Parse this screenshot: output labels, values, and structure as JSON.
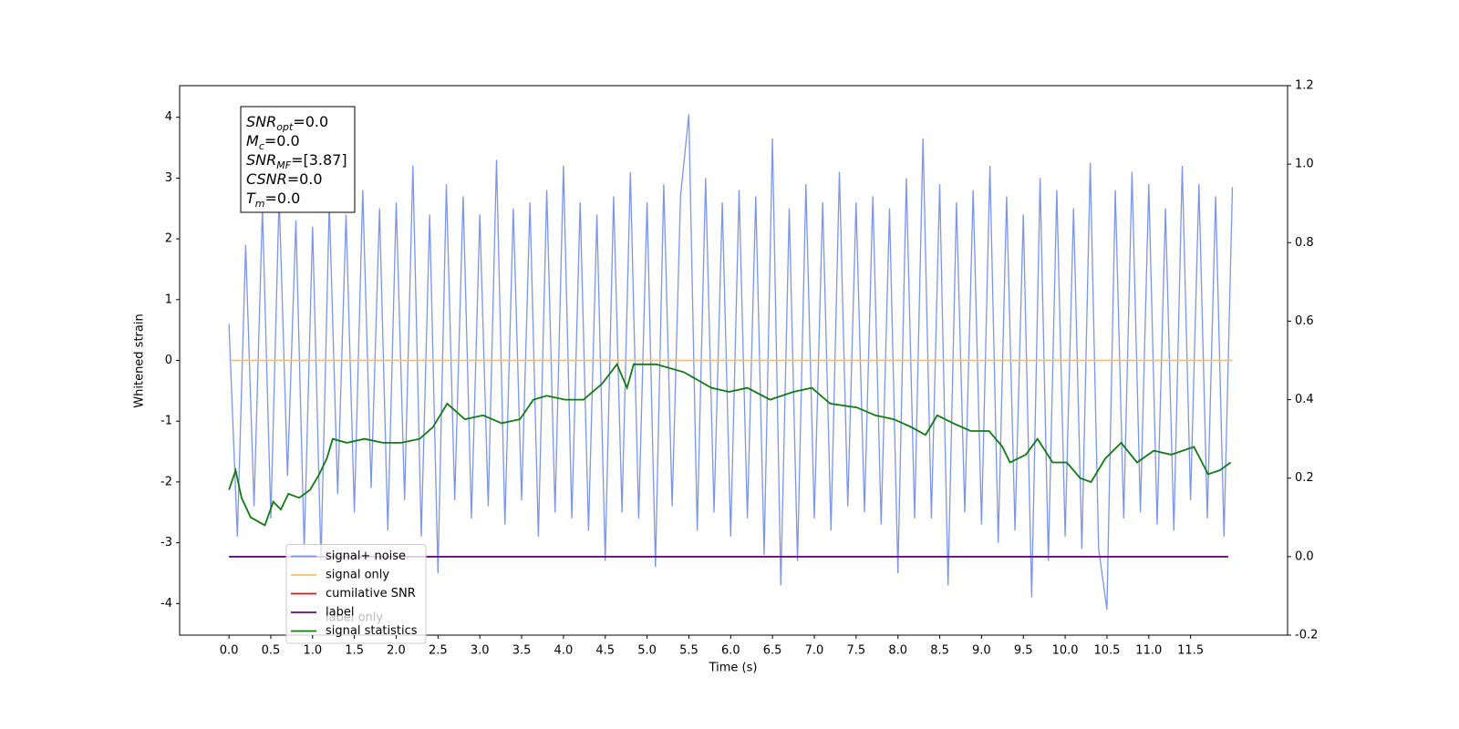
{
  "chart_data": {
    "type": "line",
    "xlabel": "Time (s)",
    "ylabel": "Whitened strain",
    "xlim": [
      -0.59,
      12.66
    ],
    "ylim": [
      -4.52,
      4.52
    ],
    "y2lim": [
      -0.2,
      1.2
    ],
    "xticks": [
      {
        "value": 0,
        "label": "0.0"
      },
      0.5,
      {
        "value": 1,
        "label": "1.0"
      },
      1.5,
      {
        "value": 2,
        "label": "2.0"
      },
      2.5,
      {
        "value": 3,
        "label": "3.0"
      },
      3.5,
      {
        "value": 4,
        "label": "4.0"
      },
      4.5,
      {
        "value": 5,
        "label": "5.0"
      },
      5.5,
      {
        "value": 6,
        "label": "6.0"
      },
      6.5,
      {
        "value": 7,
        "label": "7.0"
      },
      7.5,
      {
        "value": 8,
        "label": "8.0"
      },
      8.5,
      {
        "value": 9,
        "label": "9.0"
      },
      9.5,
      {
        "value": 10,
        "label": "10.0"
      },
      10.5,
      {
        "value": 11,
        "label": "11.0"
      },
      11.5
    ],
    "yticks": [
      -4,
      -3,
      -2,
      -1,
      0,
      1,
      2,
      3,
      4
    ],
    "y2ticks": [
      -0.2,
      {
        "value": 0,
        "label": "0.0"
      },
      0.2,
      0.4,
      0.6,
      0.8,
      {
        "value": 1,
        "label": "1.0"
      },
      1.2
    ],
    "legend_position": "lower left",
    "legend_overlay": "label only",
    "annotation": [
      {
        "main": "SNR",
        "sub": "opt",
        "rest": "=0.0"
      },
      {
        "main": "M",
        "sub": "c",
        "rest": "=0.0"
      },
      {
        "main": "SNR",
        "sub": "MF",
        "rest": "=[3.87]"
      },
      {
        "main": "CSNR",
        "sub": null,
        "rest": "=0.0"
      },
      {
        "main": "T",
        "sub": "m",
        "rest": "=0.0"
      }
    ],
    "series": [
      {
        "name": "signal+ noise",
        "color": "#7b95e8",
        "x": [
          0,
          0.1,
          0.2,
          0.3,
          0.4,
          0.5,
          0.6,
          0.7,
          0.8,
          0.9,
          1,
          1.1,
          1.2,
          1.3,
          1.4,
          1.5,
          1.6,
          1.7,
          1.8,
          1.9,
          2,
          2.1,
          2.2,
          2.3,
          2.4,
          2.5,
          2.6,
          2.7,
          2.8,
          2.9,
          3,
          3.1,
          3.2,
          3.3,
          3.4,
          3.5,
          3.6,
          3.7,
          3.8,
          3.9,
          4,
          4.1,
          4.2,
          4.3,
          4.4,
          4.5,
          4.6,
          4.7,
          4.8,
          4.9,
          5,
          5.1,
          5.2,
          5.3,
          5.4,
          5.5,
          5.6,
          5.7,
          5.8,
          5.9,
          6,
          6.1,
          6.2,
          6.3,
          6.4,
          6.5,
          6.6,
          6.7,
          6.8,
          6.9,
          7,
          7.1,
          7.2,
          7.3,
          7.4,
          7.5,
          7.6,
          7.7,
          7.8,
          7.9,
          8,
          8.1,
          8.2,
          8.3,
          8.4,
          8.5,
          8.6,
          8.7,
          8.8,
          8.9,
          9,
          9.1,
          9.2,
          9.3,
          9.4,
          9.5,
          9.6,
          9.7,
          9.8,
          9.9,
          10,
          10.1,
          10.2,
          10.3,
          10.4,
          10.5,
          10.6,
          10.7,
          10.8,
          10.9,
          11,
          11.1,
          11.2,
          11.3,
          11.4,
          11.5,
          11.6,
          11.7,
          11.8,
          11.9,
          12
        ],
        "values": [
          0.6,
          -2.9,
          1.9,
          -2.4,
          2.5,
          -2.6,
          2.7,
          -1.9,
          2.3,
          -3.1,
          2.2,
          -3.3,
          2.6,
          -2.2,
          2.4,
          -2.5,
          2.8,
          -2.1,
          2.5,
          -2.8,
          2.6,
          -2.3,
          3.2,
          -2.9,
          2.4,
          -3.5,
          2.9,
          -2.3,
          2.7,
          -2.6,
          2.4,
          -2.4,
          3.3,
          -2.7,
          2.5,
          -2.3,
          2.6,
          -2.9,
          2.8,
          -2.5,
          3.2,
          -2.6,
          2.6,
          -2.8,
          2.4,
          -3.3,
          2.7,
          -2.5,
          3.1,
          -2.6,
          2.6,
          -3.4,
          2.9,
          -2.4,
          2.7,
          4.05,
          -2.8,
          3.0,
          -2.5,
          2.6,
          -2.9,
          2.8,
          -2.6,
          2.7,
          -3.2,
          3.65,
          -3.7,
          2.5,
          -3.3,
          2.9,
          -2.6,
          2.6,
          -2.8,
          3.1,
          -2.4,
          2.6,
          -2.5,
          2.7,
          -2.7,
          2.5,
          -3.5,
          3.0,
          -2.6,
          3.65,
          -2.6,
          2.9,
          -3.7,
          2.6,
          -2.5,
          2.8,
          -2.7,
          3.2,
          -3.0,
          2.7,
          -2.8,
          2.4,
          -3.9,
          3.0,
          -3.3,
          2.8,
          -2.9,
          2.5,
          -3.1,
          3.25,
          -3.1,
          -4.1,
          2.8,
          -2.6,
          3.1,
          -2.5,
          2.9,
          -2.7,
          2.5,
          -2.8,
          3.2,
          -2.3,
          2.9,
          -2.6,
          2.7,
          -2.9,
          2.85
        ]
      },
      {
        "name": "signal only",
        "color": "#f5c26b",
        "x": [
          0,
          12
        ],
        "values": [
          0,
          0
        ]
      },
      {
        "name": "cumilative SNR",
        "color": "#e01010",
        "axis": "y2",
        "x": [
          0,
          11.95
        ],
        "values": [
          0,
          0
        ]
      },
      {
        "name": "label",
        "color": "#6a0a78",
        "axis": "y2",
        "x": [
          0,
          11.95
        ],
        "values": [
          0,
          0
        ]
      },
      {
        "name": "signal statistics",
        "color": "#117a11",
        "axis": "y2",
        "x": [
          0,
          0.08,
          0.15,
          0.26,
          0.43,
          0.53,
          0.62,
          0.71,
          0.84,
          0.97,
          1.08,
          1.17,
          1.24,
          1.41,
          1.62,
          1.84,
          2.06,
          2.28,
          2.44,
          2.61,
          2.82,
          3.04,
          3.26,
          3.48,
          3.64,
          3.8,
          4.02,
          4.24,
          4.46,
          4.64,
          4.76,
          4.84,
          5.11,
          5.44,
          5.77,
          5.98,
          6.2,
          6.47,
          6.75,
          6.97,
          7.19,
          7.51,
          7.73,
          7.95,
          8.16,
          8.33,
          8.47,
          8.66,
          8.87,
          9.09,
          9.25,
          9.34,
          9.53,
          9.67,
          9.85,
          10.02,
          10.18,
          10.31,
          10.48,
          10.67,
          10.86,
          11.06,
          11.27,
          11.54,
          11.71,
          11.85,
          11.98
        ],
        "values": [
          0.17,
          0.22,
          0.15,
          0.1,
          0.08,
          0.14,
          0.12,
          0.16,
          0.15,
          0.17,
          0.21,
          0.25,
          0.3,
          0.29,
          0.3,
          0.29,
          0.29,
          0.3,
          0.33,
          0.39,
          0.35,
          0.36,
          0.34,
          0.35,
          0.4,
          0.41,
          0.4,
          0.4,
          0.44,
          0.49,
          0.43,
          0.49,
          0.49,
          0.47,
          0.43,
          0.42,
          0.43,
          0.4,
          0.42,
          0.43,
          0.39,
          0.38,
          0.36,
          0.35,
          0.33,
          0.31,
          0.36,
          0.34,
          0.32,
          0.32,
          0.28,
          0.24,
          0.26,
          0.3,
          0.24,
          0.24,
          0.2,
          0.19,
          0.25,
          0.29,
          0.24,
          0.27,
          0.26,
          0.28,
          0.21,
          0.22,
          0.24
        ]
      }
    ]
  }
}
